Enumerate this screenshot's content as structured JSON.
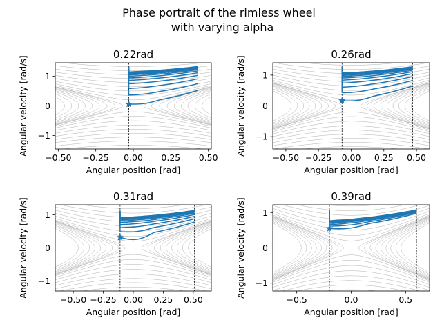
{
  "figure": {
    "title_line1": "Phase portrait of the rimless wheel",
    "title_line2": "with varying alpha"
  },
  "chart_data": [
    {
      "type": "line",
      "title": "0.22rad",
      "xlabel": "Angular position [rad]",
      "ylabel": "Angular velocity [rad/s]",
      "xlim": [
        -0.52,
        0.52
      ],
      "ylim": [
        -1.45,
        1.45
      ],
      "xticks": [
        -0.5,
        -0.25,
        0.0,
        0.25,
        0.5
      ],
      "xticklabels": [
        "−0.50",
        "−0.25",
        "0.00",
        "0.25",
        "0.50"
      ],
      "yticks": [
        -1,
        0,
        1
      ],
      "yticklabels": [
        "−1",
        "0",
        "1"
      ],
      "vlines": [
        -0.03,
        0.43
      ],
      "start_point": {
        "x": -0.03,
        "y": 0.06
      },
      "trajectory": {
        "x_start": -0.03,
        "x_end": 0.43,
        "y_start_first": 0.06,
        "y_dip_first": 0.02,
        "y_end_first": 0.52,
        "y_start_last": 1.15,
        "y_end_last": 1.33,
        "cycles": 16
      },
      "color": "#1f77b4"
    },
    {
      "type": "line",
      "title": "0.26rad",
      "xlabel": "Angular position [rad]",
      "ylabel": "Angular velocity [rad/s]",
      "xlim": [
        -0.6,
        0.6
      ],
      "ylim": [
        -1.4,
        1.4
      ],
      "xticks": [
        -0.5,
        -0.25,
        0.0,
        0.25,
        0.5
      ],
      "xticklabels": [
        "−0.50",
        "−0.25",
        "0.00",
        "0.25",
        "0.50"
      ],
      "yticks": [
        -1,
        0,
        1
      ],
      "yticklabels": [
        "−1",
        "0",
        "1"
      ],
      "vlines": [
        -0.07,
        0.47
      ],
      "start_point": {
        "x": -0.07,
        "y": 0.17
      },
      "trajectory": {
        "x_start": -0.07,
        "x_end": 0.47,
        "y_start_first": 0.17,
        "y_dip_first": 0.12,
        "y_end_first": 0.65,
        "y_start_last": 1.08,
        "y_end_last": 1.28,
        "cycles": 14
      },
      "color": "#1f77b4"
    },
    {
      "type": "line",
      "title": "0.31rad",
      "xlabel": "Angular position [rad]",
      "ylabel": "Angular velocity [rad/s]",
      "xlim": [
        -0.65,
        0.65
      ],
      "ylim": [
        -1.3,
        1.3
      ],
      "xticks": [
        -0.5,
        -0.25,
        0.0,
        0.25,
        0.5
      ],
      "xticklabels": [
        "−0.50",
        "−0.25",
        "0.00",
        "0.25",
        "0.50"
      ],
      "yticks": [
        -1,
        0,
        1
      ],
      "yticklabels": [
        "−1",
        "0",
        "1"
      ],
      "vlines": [
        -0.11,
        0.51
      ],
      "start_point": {
        "x": -0.11,
        "y": 0.32
      },
      "trajectory": {
        "x_start": -0.11,
        "x_end": 0.51,
        "y_start_first": 0.32,
        "y_dip_first": 0.2,
        "y_end_first": 0.78,
        "y_start_last": 0.93,
        "y_end_last": 1.14,
        "cycles": 12
      },
      "color": "#1f77b4"
    },
    {
      "type": "line",
      "title": "0.39rad",
      "xlabel": "Angular position [rad]",
      "ylabel": "Angular velocity [rad/s]",
      "xlim": [
        -0.72,
        0.72
      ],
      "ylim": [
        -1.22,
        1.22
      ],
      "xticks": [
        -0.5,
        0.0,
        0.5
      ],
      "xticklabels": [
        "−0.5",
        "0.0",
        "0.5"
      ],
      "yticks": [
        -1,
        0,
        1
      ],
      "yticklabels": [
        "−1",
        "0",
        "1"
      ],
      "vlines": [
        -0.2,
        0.6
      ],
      "start_point": {
        "x": -0.2,
        "y": 0.55
      },
      "trajectory": {
        "x_start": -0.2,
        "x_end": 0.6,
        "y_start_first": 0.55,
        "y_dip_first": 0.5,
        "y_end_first": 0.98,
        "y_start_last": 0.78,
        "y_end_last": 1.08,
        "cycles": 10
      },
      "color": "#1f77b4"
    }
  ]
}
